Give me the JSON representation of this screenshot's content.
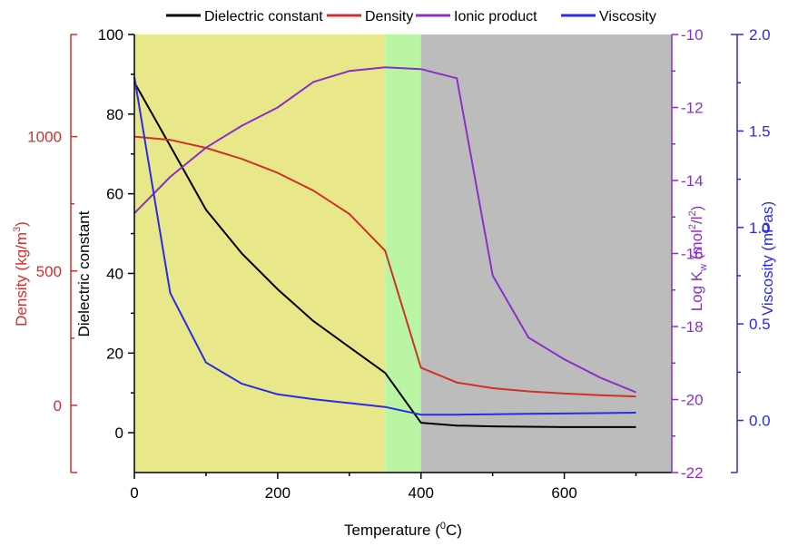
{
  "chart_data": {
    "type": "line",
    "xlabel_main": "Temperature (",
    "xlabel_sup": "0",
    "xlabel_end": "C)",
    "xlim": [
      0,
      750
    ],
    "x_ticks": [
      0,
      200,
      400,
      600
    ],
    "regions": [
      {
        "from": 0,
        "to": 350,
        "color": "#e8e88a"
      },
      {
        "from": 350,
        "to": 400,
        "color": "#b9f5a2"
      },
      {
        "from": 400,
        "to": 750,
        "color": "#bcbcbc"
      }
    ],
    "legend": [
      {
        "key": "dielectric",
        "label": "Dielectric constant",
        "color": "#000000"
      },
      {
        "key": "density",
        "label": "Density",
        "color": "#d0312d"
      },
      {
        "key": "ionic",
        "label": "Ionic product",
        "color": "#8b2fc9"
      },
      {
        "key": "viscosity",
        "label": "Viscosity",
        "color": "#2a2ae8"
      }
    ],
    "axes": {
      "dielectric": {
        "label": "Dielectric constant",
        "color": "#000000",
        "ylim": [
          -10,
          100
        ],
        "ticks": [
          0,
          20,
          40,
          60,
          80,
          100
        ],
        "tick_labels": [
          "0",
          "20",
          "40",
          "60",
          "80",
          "100"
        ]
      },
      "density": {
        "label_main": "Density (kg/m",
        "label_sup": "3",
        "label_end": ")",
        "color": "#d0312d",
        "ylim": [
          -250,
          1380
        ],
        "ticks": [
          0,
          500,
          1000
        ],
        "tick_labels": [
          "0",
          "500",
          "1000"
        ]
      },
      "ionic": {
        "label_main": "Log K",
        "label_sub": "w",
        "label_mid": " (mol",
        "label_sup1": "2",
        "label_mid2": "/l",
        "label_sup2": "2",
        "label_end": ")",
        "color": "#8b2fc9",
        "ylim": [
          -22,
          -10
        ],
        "ticks": [
          -22,
          -20,
          -18,
          -16,
          -14,
          -12,
          -10
        ],
        "tick_labels": [
          "-22",
          "-20",
          "-18",
          "-16",
          "-14",
          "-12",
          "-10"
        ]
      },
      "viscosity": {
        "label": "Viscosity (mPas)",
        "color": "#2a2ae8",
        "ylim": [
          -0.27,
          2.0
        ],
        "ticks": [
          0.0,
          0.5,
          1.0,
          1.5,
          2.0
        ],
        "tick_labels": [
          "0.0",
          "0.5",
          "1.0",
          "1.5",
          "2.0"
        ]
      }
    },
    "series": [
      {
        "name": "Dielectric constant",
        "axis": "dielectric",
        "color": "#000000",
        "x": [
          0,
          50,
          100,
          150,
          200,
          250,
          300,
          350,
          400,
          450,
          500,
          550,
          600,
          650,
          700
        ],
        "y": [
          88,
          72,
          56,
          45,
          36,
          28,
          21.5,
          15,
          2.5,
          1.8,
          1.6,
          1.5,
          1.4,
          1.4,
          1.4
        ]
      },
      {
        "name": "Density",
        "axis": "density",
        "color": "#d0312d",
        "x": [
          0,
          50,
          100,
          150,
          200,
          250,
          300,
          350,
          400,
          450,
          500,
          550,
          600,
          650,
          700
        ],
        "y": [
          1000,
          988,
          958,
          917,
          865,
          799,
          712,
          575,
          140,
          85,
          64,
          52,
          44,
          38,
          33
        ]
      },
      {
        "name": "Ionic product",
        "axis": "ionic",
        "color": "#8b2fc9",
        "x": [
          0,
          50,
          100,
          150,
          200,
          250,
          300,
          350,
          400,
          450,
          500,
          550,
          600,
          650,
          700
        ],
        "y": [
          -14.9,
          -13.9,
          -13.1,
          -12.5,
          -12.0,
          -11.3,
          -11.0,
          -10.9,
          -10.95,
          -11.2,
          -16.6,
          -18.3,
          -18.9,
          -19.4,
          -19.8
        ]
      },
      {
        "name": "Viscosity",
        "axis": "viscosity",
        "color": "#2a2ae8",
        "x": [
          0,
          50,
          100,
          150,
          200,
          250,
          300,
          350,
          400,
          450,
          500,
          550,
          600,
          650,
          700
        ],
        "y": [
          1.78,
          0.66,
          0.3,
          0.19,
          0.135,
          0.11,
          0.09,
          0.07,
          0.03,
          0.03,
          0.032,
          0.034,
          0.036,
          0.038,
          0.04
        ]
      }
    ]
  }
}
